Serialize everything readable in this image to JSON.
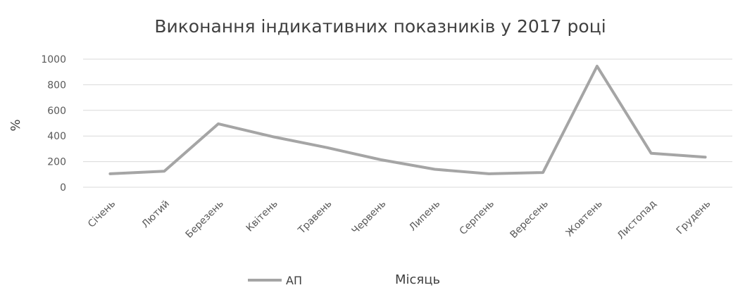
{
  "chart_data": {
    "type": "line",
    "title": "Виконання індикативних показників у 2017 році",
    "xlabel": "Місяць",
    "ylabel": "%",
    "ylim": [
      0,
      1000
    ],
    "yticks": [
      0,
      200,
      400,
      600,
      800,
      1000
    ],
    "grid": true,
    "legend_position": "bottom",
    "categories": [
      "Січень",
      "Лютий",
      "Березень",
      "Квітень",
      "Травень",
      "Червень",
      "Липень",
      "Серпень",
      "Вересень",
      "Жовтень",
      "Листопад",
      "Грудень"
    ],
    "series": [
      {
        "name": "АП",
        "color": "#a5a5a5",
        "values": [
          105,
          125,
          495,
          395,
          310,
          215,
          140,
          105,
          115,
          945,
          265,
          235
        ]
      }
    ]
  }
}
